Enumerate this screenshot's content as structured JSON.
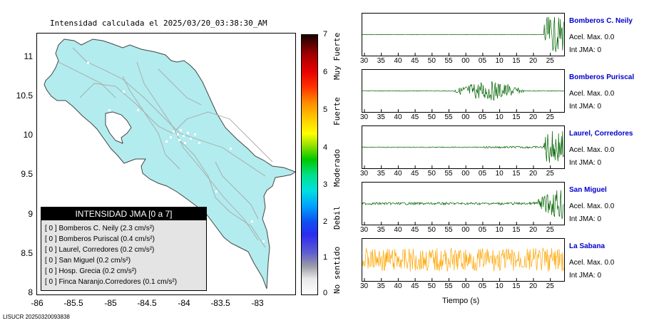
{
  "map": {
    "title": "Intensidad calculada el 2025/03/20_03:38:30_AM",
    "y_ticks": [
      "11",
      "10.5",
      "10",
      "9.5",
      "9",
      "8.5",
      "8"
    ],
    "x_ticks": [
      "-86",
      "-85.5",
      "-85",
      "-84.5",
      "-84",
      "-83.5",
      "-83"
    ],
    "land_color": "#b2ecee",
    "footer": "LISUCR 20250320093838"
  },
  "legend": {
    "title": "INTENSIDAD JMA [0 a 7]",
    "rows": [
      "[ 0 ]  Bomberos C. Neily (2.3 cm/s²)",
      "[ 0 ]  Bomberos Puriscal (0.4 cm/s²)",
      "[ 0 ]  Laurel, Corredores (0.2 cm/s²)",
      "[ 0 ]  San Miguel (0.2 cm/s²)",
      "[ 0 ]  Hosp. Grecia (0.2 cm/s²)",
      "[ 0 ]  Finca Naranjo.Corredores (0.1 cm/s²)"
    ]
  },
  "colorbar": {
    "ticks": [
      "7",
      "6",
      "5",
      "4",
      "3",
      "2",
      "1",
      "0"
    ],
    "labels": [
      "No sentido",
      "Debil",
      "Moderado",
      "Fuerte",
      "Muy Fuerte"
    ]
  },
  "traces": {
    "x_ticks": [
      "30",
      "35",
      "40",
      "45",
      "50",
      "55",
      "00",
      "05",
      "10",
      "15",
      "20",
      "25"
    ],
    "xlabel": "Tiempo (s)",
    "stations": [
      {
        "name": "Bomberos C. Neily",
        "acel": "Acel. Max. 0.0",
        "int": "Int JMA: 0",
        "color": "#006400"
      },
      {
        "name": "Bomberos Puriscal",
        "acel": "Acel. Max. 0.0",
        "int": "Int JMA: 0",
        "color": "#006400"
      },
      {
        "name": "Laurel, Corredores",
        "acel": "Acel. Max. 0.0",
        "int": "Int JMA: 0",
        "color": "#006400"
      },
      {
        "name": "San Miguel",
        "acel": "Acel. Max. 0.0",
        "int": "Int JMA: 0",
        "color": "#006400"
      },
      {
        "name": "La Sabana",
        "acel": "Acel. Max. 0.0",
        "int": "Int JMA: 0",
        "color": "#ffa500"
      }
    ]
  }
}
